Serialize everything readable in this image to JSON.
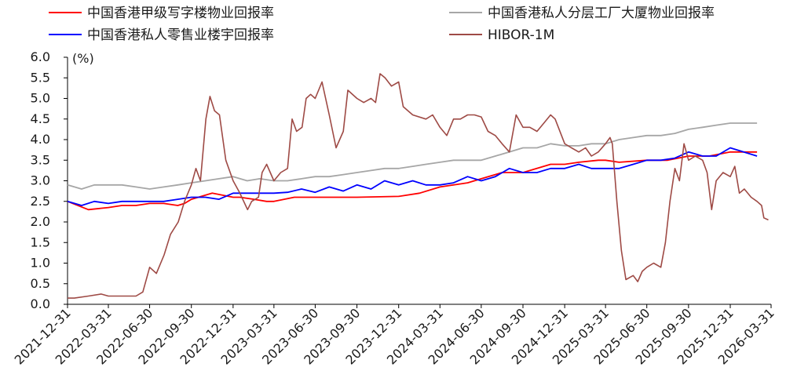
{
  "chart_data": {
    "type": "line",
    "unit_label": "(%)",
    "ylim": [
      0,
      6
    ],
    "yticks": [
      "0.0",
      "0.5",
      "1.0",
      "1.5",
      "2.0",
      "2.5",
      "3.0",
      "3.5",
      "4.0",
      "4.5",
      "5.0",
      "5.5",
      "6.0"
    ],
    "xlim": [
      "2021-12-31",
      "2026-03-31"
    ],
    "xticks": [
      "2021-12-31",
      "2022-03-31",
      "2022-06-30",
      "2022-09-30",
      "2022-12-31",
      "2023-03-31",
      "2023-06-30",
      "2023-09-30",
      "2023-12-31",
      "2024-03-31",
      "2024-06-30",
      "2024-09-30",
      "2024-12-31",
      "2025-03-31",
      "2025-06-30",
      "2025-09-30",
      "2025-12-31",
      "2026-03-31"
    ],
    "grid": false,
    "legend_position": "top",
    "series": [
      {
        "name": "中国香港甲级写字楼物业回报率",
        "color": "#ff0000",
        "points": [
          [
            "2021-12-31",
            2.5
          ],
          [
            "2022-02-15",
            2.3
          ],
          [
            "2022-03-31",
            2.35
          ],
          [
            "2022-04-30",
            2.4
          ],
          [
            "2022-05-31",
            2.4
          ],
          [
            "2022-06-30",
            2.45
          ],
          [
            "2022-07-31",
            2.45
          ],
          [
            "2022-08-31",
            2.4
          ],
          [
            "2022-09-15",
            2.45
          ],
          [
            "2022-09-30",
            2.55
          ],
          [
            "2022-11-15",
            2.7
          ],
          [
            "2022-12-31",
            2.6
          ],
          [
            "2023-01-15",
            2.6
          ],
          [
            "2023-02-15",
            2.55
          ],
          [
            "2023-03-15",
            2.5
          ],
          [
            "2023-03-31",
            2.5
          ],
          [
            "2023-05-15",
            2.6
          ],
          [
            "2023-06-30",
            2.6
          ],
          [
            "2023-09-30",
            2.6
          ],
          [
            "2023-12-31",
            2.62
          ],
          [
            "2024-02-15",
            2.7
          ],
          [
            "2024-03-31",
            2.85
          ],
          [
            "2024-05-31",
            2.95
          ],
          [
            "2024-06-30",
            3.05
          ],
          [
            "2024-08-15",
            3.2
          ],
          [
            "2024-09-30",
            3.2
          ],
          [
            "2024-11-30",
            3.4
          ],
          [
            "2024-12-31",
            3.4
          ],
          [
            "2025-01-31",
            3.45
          ],
          [
            "2025-03-15",
            3.5
          ],
          [
            "2025-03-31",
            3.5
          ],
          [
            "2025-04-30",
            3.45
          ],
          [
            "2025-06-30",
            3.5
          ],
          [
            "2025-08-15",
            3.5
          ],
          [
            "2025-09-30",
            3.6
          ],
          [
            "2025-11-15",
            3.6
          ],
          [
            "2025-12-31",
            3.7
          ],
          [
            "2026-02-28",
            3.7
          ]
        ]
      },
      {
        "name": "中国香港私人分层工厂大厦物业回报率",
        "color": "#a6a6a6",
        "points": [
          [
            "2021-12-31",
            2.9
          ],
          [
            "2022-01-31",
            2.8
          ],
          [
            "2022-02-28",
            2.9
          ],
          [
            "2022-03-31",
            2.9
          ],
          [
            "2022-04-30",
            2.9
          ],
          [
            "2022-05-31",
            2.85
          ],
          [
            "2022-06-30",
            2.8
          ],
          [
            "2022-07-31",
            2.85
          ],
          [
            "2022-08-31",
            2.9
          ],
          [
            "2022-09-30",
            2.95
          ],
          [
            "2022-10-31",
            3.0
          ],
          [
            "2022-11-30",
            3.05
          ],
          [
            "2022-12-31",
            3.1
          ],
          [
            "2023-01-31",
            3.0
          ],
          [
            "2023-02-28",
            3.05
          ],
          [
            "2023-03-31",
            3.0
          ],
          [
            "2023-04-30",
            3.0
          ],
          [
            "2023-05-31",
            3.05
          ],
          [
            "2023-06-30",
            3.1
          ],
          [
            "2023-07-31",
            3.1
          ],
          [
            "2023-08-31",
            3.15
          ],
          [
            "2023-09-30",
            3.2
          ],
          [
            "2023-10-31",
            3.25
          ],
          [
            "2023-11-30",
            3.3
          ],
          [
            "2023-12-31",
            3.3
          ],
          [
            "2024-01-31",
            3.35
          ],
          [
            "2024-02-29",
            3.4
          ],
          [
            "2024-03-31",
            3.45
          ],
          [
            "2024-04-30",
            3.5
          ],
          [
            "2024-05-31",
            3.5
          ],
          [
            "2024-06-30",
            3.5
          ],
          [
            "2024-07-31",
            3.6
          ],
          [
            "2024-08-31",
            3.7
          ],
          [
            "2024-09-30",
            3.8
          ],
          [
            "2024-10-31",
            3.8
          ],
          [
            "2024-11-30",
            3.9
          ],
          [
            "2024-12-31",
            3.85
          ],
          [
            "2025-01-31",
            3.85
          ],
          [
            "2025-02-28",
            3.9
          ],
          [
            "2025-03-31",
            3.9
          ],
          [
            "2025-04-30",
            4.0
          ],
          [
            "2025-05-31",
            4.05
          ],
          [
            "2025-06-30",
            4.1
          ],
          [
            "2025-07-31",
            4.1
          ],
          [
            "2025-08-31",
            4.15
          ],
          [
            "2025-09-30",
            4.25
          ],
          [
            "2025-10-31",
            4.3
          ],
          [
            "2025-11-30",
            4.35
          ],
          [
            "2025-12-31",
            4.4
          ],
          [
            "2026-02-28",
            4.4
          ]
        ]
      },
      {
        "name": "中国香港私人零售业楼宇回报率",
        "color": "#0000ff",
        "points": [
          [
            "2021-12-31",
            2.5
          ],
          [
            "2022-01-31",
            2.4
          ],
          [
            "2022-02-28",
            2.5
          ],
          [
            "2022-03-31",
            2.45
          ],
          [
            "2022-04-30",
            2.5
          ],
          [
            "2022-05-31",
            2.5
          ],
          [
            "2022-06-30",
            2.5
          ],
          [
            "2022-07-31",
            2.5
          ],
          [
            "2022-08-31",
            2.55
          ],
          [
            "2022-09-30",
            2.6
          ],
          [
            "2022-10-31",
            2.6
          ],
          [
            "2022-11-30",
            2.55
          ],
          [
            "2022-12-31",
            2.7
          ],
          [
            "2023-01-31",
            2.7
          ],
          [
            "2023-02-28",
            2.7
          ],
          [
            "2023-03-31",
            2.7
          ],
          [
            "2023-04-30",
            2.72
          ],
          [
            "2023-05-31",
            2.8
          ],
          [
            "2023-06-30",
            2.72
          ],
          [
            "2023-07-31",
            2.85
          ],
          [
            "2023-08-31",
            2.75
          ],
          [
            "2023-09-30",
            2.9
          ],
          [
            "2023-10-31",
            2.8
          ],
          [
            "2023-11-30",
            3.0
          ],
          [
            "2023-12-31",
            2.9
          ],
          [
            "2024-01-31",
            3.0
          ],
          [
            "2024-02-29",
            2.9
          ],
          [
            "2024-03-31",
            2.9
          ],
          [
            "2024-04-30",
            2.95
          ],
          [
            "2024-05-31",
            3.1
          ],
          [
            "2024-06-30",
            3.0
          ],
          [
            "2024-07-31",
            3.1
          ],
          [
            "2024-08-31",
            3.3
          ],
          [
            "2024-09-30",
            3.2
          ],
          [
            "2024-10-31",
            3.2
          ],
          [
            "2024-11-30",
            3.3
          ],
          [
            "2024-12-31",
            3.3
          ],
          [
            "2025-01-31",
            3.4
          ],
          [
            "2025-02-28",
            3.3
          ],
          [
            "2025-03-31",
            3.3
          ],
          [
            "2025-04-30",
            3.3
          ],
          [
            "2025-05-31",
            3.4
          ],
          [
            "2025-06-30",
            3.5
          ],
          [
            "2025-07-31",
            3.5
          ],
          [
            "2025-08-31",
            3.55
          ],
          [
            "2025-09-30",
            3.7
          ],
          [
            "2025-10-31",
            3.6
          ],
          [
            "2025-11-30",
            3.6
          ],
          [
            "2025-12-31",
            3.8
          ],
          [
            "2026-02-28",
            3.6
          ]
        ]
      },
      {
        "name": "HIBOR-1M",
        "color": "#9e4a45",
        "points": [
          [
            "2021-12-31",
            0.15
          ],
          [
            "2022-01-15",
            0.15
          ],
          [
            "2022-02-15",
            0.2
          ],
          [
            "2022-03-15",
            0.25
          ],
          [
            "2022-03-31",
            0.2
          ],
          [
            "2022-04-30",
            0.2
          ],
          [
            "2022-05-31",
            0.2
          ],
          [
            "2022-06-15",
            0.3
          ],
          [
            "2022-06-30",
            0.9
          ],
          [
            "2022-07-15",
            0.75
          ],
          [
            "2022-08-01",
            1.2
          ],
          [
            "2022-08-15",
            1.7
          ],
          [
            "2022-09-01",
            2.0
          ],
          [
            "2022-09-15",
            2.5
          ],
          [
            "2022-09-30",
            2.9
          ],
          [
            "2022-10-10",
            3.3
          ],
          [
            "2022-10-20",
            3.0
          ],
          [
            "2022-11-01",
            4.5
          ],
          [
            "2022-11-10",
            5.05
          ],
          [
            "2022-11-20",
            4.7
          ],
          [
            "2022-12-01",
            4.6
          ],
          [
            "2022-12-15",
            3.5
          ],
          [
            "2022-12-31",
            3.0
          ],
          [
            "2023-01-15",
            2.7
          ],
          [
            "2023-02-01",
            2.3
          ],
          [
            "2023-02-10",
            2.5
          ],
          [
            "2023-02-25",
            2.6
          ],
          [
            "2023-03-05",
            3.2
          ],
          [
            "2023-03-15",
            3.4
          ],
          [
            "2023-03-31",
            3.0
          ],
          [
            "2023-04-15",
            3.2
          ],
          [
            "2023-04-30",
            3.3
          ],
          [
            "2023-05-10",
            4.5
          ],
          [
            "2023-05-20",
            4.2
          ],
          [
            "2023-06-01",
            4.3
          ],
          [
            "2023-06-10",
            5.0
          ],
          [
            "2023-06-20",
            5.1
          ],
          [
            "2023-06-30",
            5.0
          ],
          [
            "2023-07-15",
            5.4
          ],
          [
            "2023-07-31",
            4.6
          ],
          [
            "2023-08-15",
            3.8
          ],
          [
            "2023-08-31",
            4.2
          ],
          [
            "2023-09-10",
            5.2
          ],
          [
            "2023-09-30",
            5.0
          ],
          [
            "2023-10-15",
            4.9
          ],
          [
            "2023-10-31",
            5.0
          ],
          [
            "2023-11-10",
            4.9
          ],
          [
            "2023-11-20",
            5.6
          ],
          [
            "2023-12-01",
            5.5
          ],
          [
            "2023-12-15",
            5.3
          ],
          [
            "2023-12-31",
            5.4
          ],
          [
            "2024-01-10",
            4.8
          ],
          [
            "2024-01-31",
            4.6
          ],
          [
            "2024-02-29",
            4.5
          ],
          [
            "2024-03-15",
            4.6
          ],
          [
            "2024-03-31",
            4.3
          ],
          [
            "2024-04-15",
            4.1
          ],
          [
            "2024-04-30",
            4.5
          ],
          [
            "2024-05-15",
            4.5
          ],
          [
            "2024-05-31",
            4.6
          ],
          [
            "2024-06-15",
            4.6
          ],
          [
            "2024-06-30",
            4.55
          ],
          [
            "2024-07-15",
            4.2
          ],
          [
            "2024-07-31",
            4.1
          ],
          [
            "2024-08-15",
            3.9
          ],
          [
            "2024-08-31",
            3.7
          ],
          [
            "2024-09-15",
            4.6
          ],
          [
            "2024-09-30",
            4.3
          ],
          [
            "2024-10-15",
            4.3
          ],
          [
            "2024-10-31",
            4.2
          ],
          [
            "2024-11-15",
            4.4
          ],
          [
            "2024-11-30",
            4.6
          ],
          [
            "2024-12-10",
            4.5
          ],
          [
            "2024-12-31",
            3.9
          ],
          [
            "2025-01-15",
            3.8
          ],
          [
            "2025-01-31",
            3.7
          ],
          [
            "2025-02-15",
            3.8
          ],
          [
            "2025-02-28",
            3.6
          ],
          [
            "2025-03-15",
            3.7
          ],
          [
            "2025-03-31",
            3.9
          ],
          [
            "2025-04-10",
            4.05
          ],
          [
            "2025-04-15",
            3.9
          ],
          [
            "2025-04-25",
            2.5
          ],
          [
            "2025-05-05",
            1.3
          ],
          [
            "2025-05-15",
            0.6
          ],
          [
            "2025-05-31",
            0.7
          ],
          [
            "2025-06-10",
            0.55
          ],
          [
            "2025-06-20",
            0.8
          ],
          [
            "2025-06-30",
            0.9
          ],
          [
            "2025-07-15",
            1.0
          ],
          [
            "2025-07-31",
            0.9
          ],
          [
            "2025-08-10",
            1.5
          ],
          [
            "2025-08-20",
            2.5
          ],
          [
            "2025-08-31",
            3.3
          ],
          [
            "2025-09-10",
            3.0
          ],
          [
            "2025-09-20",
            3.9
          ],
          [
            "2025-09-30",
            3.5
          ],
          [
            "2025-10-15",
            3.6
          ],
          [
            "2025-10-31",
            3.5
          ],
          [
            "2025-11-10",
            3.2
          ],
          [
            "2025-11-20",
            2.3
          ],
          [
            "2025-11-30",
            3.0
          ],
          [
            "2025-12-15",
            3.2
          ],
          [
            "2025-12-31",
            3.1
          ],
          [
            "2026-01-10",
            3.35
          ],
          [
            "2026-01-20",
            2.7
          ],
          [
            "2026-01-31",
            2.8
          ],
          [
            "2026-02-15",
            2.6
          ],
          [
            "2026-02-28",
            2.5
          ],
          [
            "2026-03-10",
            2.4
          ],
          [
            "2026-03-15",
            2.1
          ],
          [
            "2026-03-25",
            2.05
          ]
        ]
      }
    ]
  }
}
